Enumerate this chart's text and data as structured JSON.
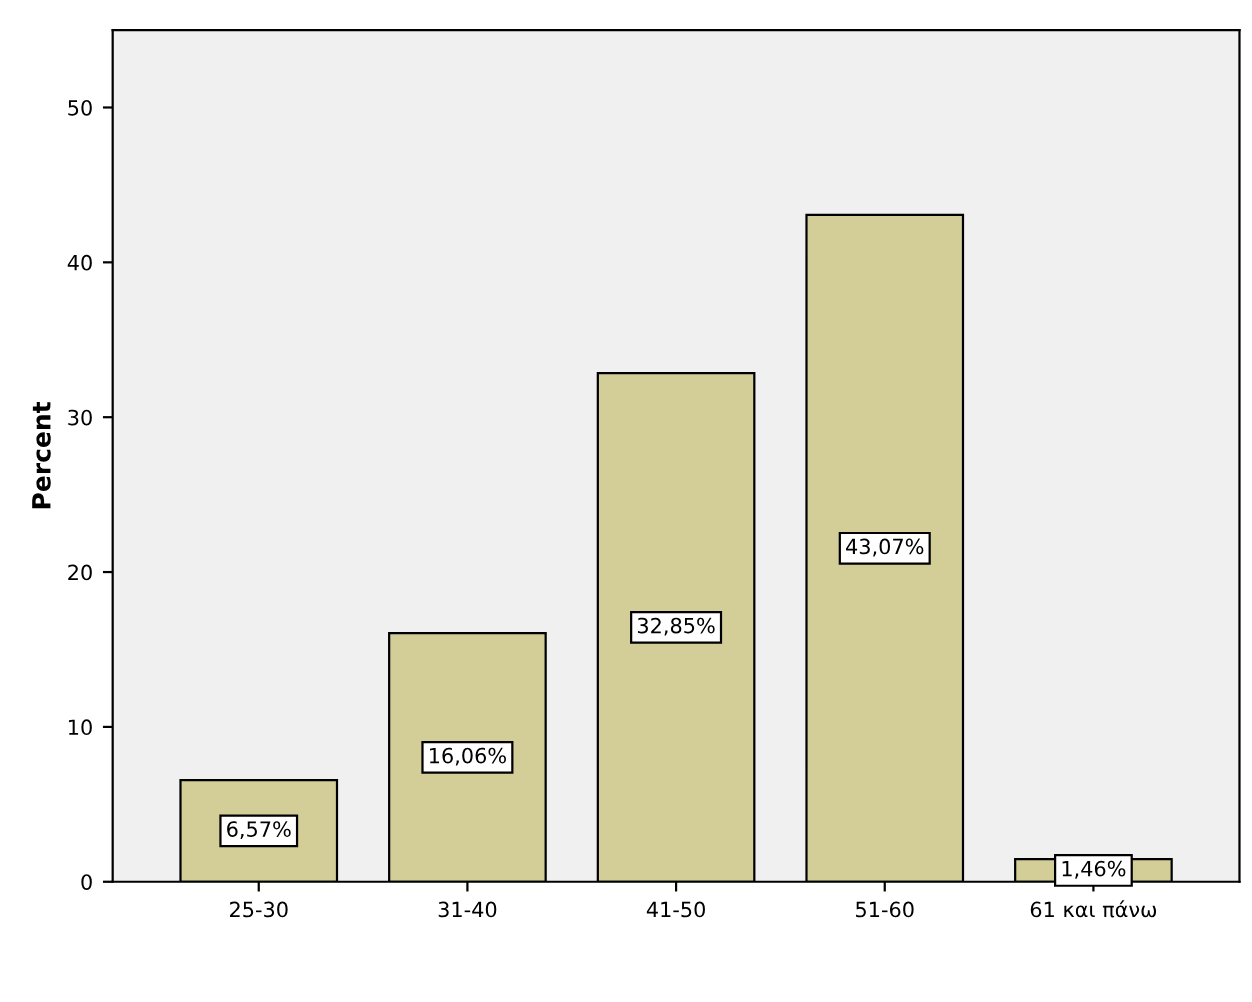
{
  "chart_data": {
    "type": "bar",
    "ylabel": "Percent",
    "categories": [
      "25-30",
      "31-40",
      "41-50",
      "51-60",
      "61 και πάνω"
    ],
    "values": [
      6.57,
      16.06,
      32.85,
      43.07,
      1.46
    ],
    "value_labels": [
      "6,57%",
      "16,06%",
      "32,85%",
      "43,07%",
      "1,46%"
    ],
    "color": "#d3ce97",
    "ylim": [
      0,
      55
    ],
    "yticks": [
      0,
      10,
      20,
      30,
      40,
      50
    ],
    "grid": false
  }
}
